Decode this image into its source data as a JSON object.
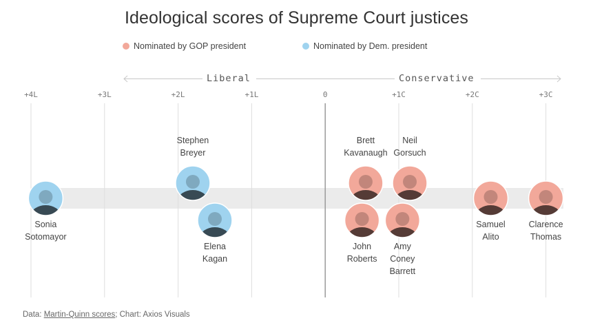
{
  "title": "Ideological scores of Supreme Court justices",
  "legend": [
    {
      "label": "Nominated by GOP president",
      "color": "#f2a89a"
    },
    {
      "label": "Nominated by Dem. president",
      "color": "#9fd3ef"
    }
  ],
  "direction_labels": {
    "left": "Liberal",
    "right": "Conservative"
  },
  "source": {
    "prefix": "Data: ",
    "link_text": "Martin-Quinn scores",
    "suffix": "; Chart: Axios Visuals"
  },
  "chart_data": {
    "type": "scatter",
    "title": "Ideological scores of Supreme Court justices",
    "xlim": [
      -4,
      3
    ],
    "x_ticks": [
      {
        "value": -4,
        "label": "+4L"
      },
      {
        "value": -3,
        "label": "+3L"
      },
      {
        "value": -2,
        "label": "+2L"
      },
      {
        "value": -1,
        "label": "+1L"
      },
      {
        "value": 0,
        "label": "0"
      },
      {
        "value": 1,
        "label": "+1C"
      },
      {
        "value": 2,
        "label": "+2C"
      },
      {
        "value": 3,
        "label": "+3C"
      }
    ],
    "grid": true,
    "legend_position": "top-center",
    "series": [
      {
        "name": "Nominated by GOP president",
        "color": "#f2a89a",
        "points": [
          {
            "name": [
              "Brett",
              "Kavanaugh"
            ],
            "x": 0.55
          },
          {
            "name": [
              "Neil",
              "Gorsuch"
            ],
            "x": 1.15
          },
          {
            "name": [
              "John",
              "Roberts"
            ],
            "x": 0.5
          },
          {
            "name": [
              "Amy",
              "Coney",
              "Barrett"
            ],
            "x": 1.05
          },
          {
            "name": [
              "Samuel",
              "Alito"
            ],
            "x": 2.25
          },
          {
            "name": [
              "Clarence",
              "Thomas"
            ],
            "x": 3.0
          }
        ]
      },
      {
        "name": "Nominated by Dem. president",
        "color": "#9fd3ef",
        "points": [
          {
            "name": [
              "Sonia",
              "Sotomayor"
            ],
            "x": -3.8
          },
          {
            "name": [
              "Stephen",
              "Breyer"
            ],
            "x": -1.8
          },
          {
            "name": [
              "Elena",
              "Kagan"
            ],
            "x": -1.5
          }
        ]
      }
    ]
  }
}
